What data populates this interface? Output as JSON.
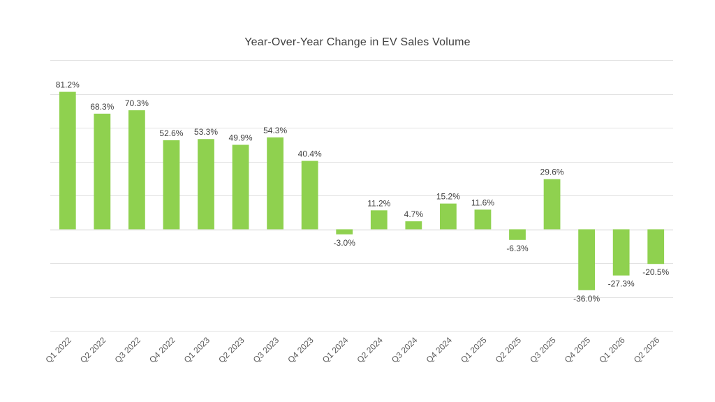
{
  "chart_data": {
    "type": "bar",
    "title": "Year-Over-Year Change in EV Sales Volume",
    "xlabel": "",
    "ylabel": "",
    "categories": [
      "Q1 2022",
      "Q2 2022",
      "Q3 2022",
      "Q4 2022",
      "Q1 2023",
      "Q2 2023",
      "Q3 2023",
      "Q4 2023",
      "Q1 2024",
      "Q2 2024",
      "Q3 2024",
      "Q4 2024",
      "Q1 2025",
      "Q2 2025",
      "Q3 2025",
      "Q4 2025",
      "Q1 2026",
      "Q2 2026"
    ],
    "values": [
      81.2,
      68.3,
      70.3,
      52.6,
      53.3,
      49.9,
      54.3,
      40.4,
      -3.0,
      11.2,
      4.7,
      15.2,
      11.6,
      -6.3,
      29.6,
      -36.0,
      -27.3,
      -20.5
    ],
    "data_labels": [
      "81.2%",
      "68.3%",
      "70.3%",
      "52.6%",
      "53.3%",
      "49.9%",
      "54.3%",
      "40.4%",
      "-3.0%",
      "11.2%",
      "4.7%",
      "15.2%",
      "11.6%",
      "-6.3%",
      "29.6%",
      "-36.0%",
      "-27.3%",
      "-20.5%"
    ],
    "ylim": [
      -60,
      100
    ],
    "y_gridlines": [
      -60,
      -40,
      -20,
      0,
      20,
      40,
      60,
      80,
      100
    ],
    "y_tick_labels_shown": false,
    "grid": true,
    "legend": "none",
    "bar_color": "#8fd14f"
  }
}
